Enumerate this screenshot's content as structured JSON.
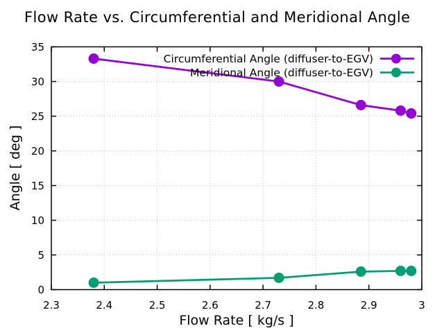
{
  "chart_data": {
    "type": "line",
    "title": "Flow Rate vs. Circumferential and Meridional Angle",
    "xlabel": "Flow Rate [ kg/s ]",
    "ylabel": "Angle [ deg ]",
    "xlim": [
      2.3,
      3.0
    ],
    "ylim": [
      0,
      35
    ],
    "xticks": [
      2.3,
      2.4,
      2.5,
      2.6,
      2.7,
      2.8,
      2.9,
      3
    ],
    "xtick_labels": [
      "2.3",
      "2.4",
      "2.5",
      "2.6",
      "2.7",
      "2.8",
      "2.9",
      "3"
    ],
    "yticks": [
      0,
      5,
      10,
      15,
      20,
      25,
      30,
      35
    ],
    "ytick_labels": [
      "0",
      "5",
      "10",
      "15",
      "20",
      "25",
      "30",
      "35"
    ],
    "grid": true,
    "grid_color": "#bdbdbd",
    "axis_color": "#000000",
    "background_color": "#ffffff",
    "legend_position": "top-right-inside",
    "series": [
      {
        "name": "Circumferential Angle (diffuser-to-EGV)",
        "color": "#9400d3",
        "marker": "filled-circle",
        "x": [
          2.38,
          2.73,
          2.885,
          2.96,
          2.98
        ],
        "y": [
          33.3,
          30.0,
          26.6,
          25.8,
          25.4
        ]
      },
      {
        "name": "Meridional Angle (diffuser-to-EGV)",
        "color": "#009e73",
        "marker": "filled-circle",
        "x": [
          2.38,
          2.73,
          2.885,
          2.96,
          2.98
        ],
        "y": [
          1.0,
          1.7,
          2.6,
          2.7,
          2.7
        ]
      }
    ]
  }
}
